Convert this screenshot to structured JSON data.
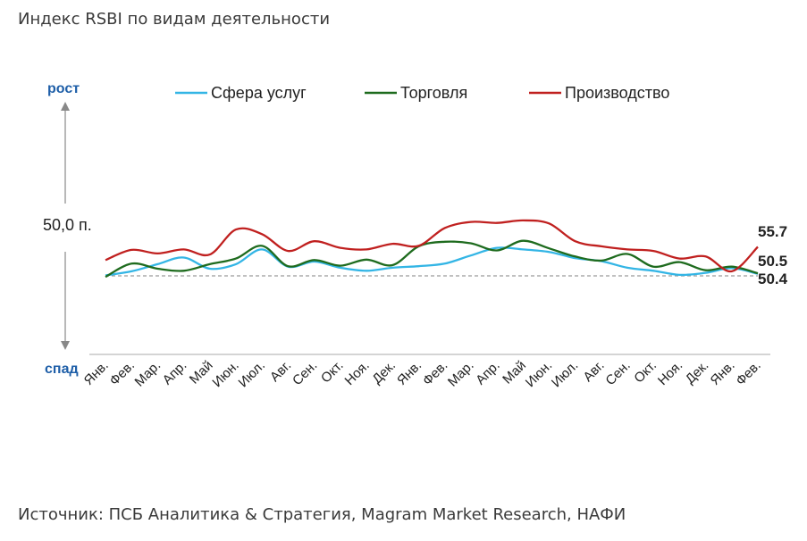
{
  "title": "Индекс RSBI по видам деятельности",
  "source": "Источник: ПСБ Аналитика & Стратегия, Magram Market Research, НАФИ",
  "axis": {
    "up_label": "рост",
    "down_label": "спад",
    "mid_label": "50,0 п."
  },
  "colors": {
    "services": "#33b5e5",
    "trade": "#1e6b1e",
    "production": "#c0201f",
    "baseline": "#9a9a9a",
    "axis": "#888888",
    "updown_text": "#1f5fa8"
  },
  "end_labels": [
    "55.7",
    "50.5",
    "50.4"
  ],
  "chart_data": {
    "type": "line",
    "title": "Индекс RSBI по видам деятельности",
    "categories": [
      "Янв.",
      "Фев.",
      "Мар.",
      "Апр.",
      "Май",
      "Июн.",
      "Июл.",
      "Авг.",
      "Сен.",
      "Окт.",
      "Ноя.",
      "Дек.",
      "Янв.",
      "Фев.",
      "Мар.",
      "Апр.",
      "Май",
      "Июн.",
      "Июл.",
      "Авг.",
      "Сен.",
      "Окт.",
      "Ноя.",
      "Дек.",
      "Янв.",
      "Фев."
    ],
    "baseline": 50.0,
    "ylim": [
      30,
      65
    ],
    "legend_position": "top",
    "series": [
      {
        "name": "Сфера услуг",
        "color": "#33b5e5",
        "values": [
          50.1,
          50.9,
          52.3,
          53.6,
          51.4,
          52.3,
          55.2,
          51.8,
          52.8,
          51.6,
          51.0,
          51.6,
          51.9,
          52.4,
          54.0,
          55.5,
          55.2,
          54.7,
          53.5,
          52.9,
          51.6,
          51.0,
          50.2,
          50.6,
          51.5,
          50.4
        ]
      },
      {
        "name": "Торговля",
        "color": "#1e6b1e",
        "values": [
          49.8,
          52.4,
          51.4,
          51.0,
          52.3,
          53.4,
          55.9,
          51.9,
          53.1,
          52.0,
          53.2,
          52.1,
          55.8,
          56.7,
          56.4,
          55.0,
          56.9,
          55.4,
          53.8,
          53.0,
          54.3,
          51.8,
          52.7,
          51.1,
          51.8,
          50.5
        ]
      },
      {
        "name": "Производство",
        "color": "#c0201f",
        "values": [
          53.1,
          55.1,
          54.4,
          55.2,
          54.2,
          59.1,
          58.2,
          54.9,
          56.8,
          55.5,
          55.2,
          56.3,
          55.9,
          59.4,
          60.6,
          60.4,
          60.9,
          60.3,
          56.8,
          55.8,
          55.2,
          54.9,
          53.4,
          53.8,
          50.9,
          55.7
        ]
      }
    ]
  }
}
